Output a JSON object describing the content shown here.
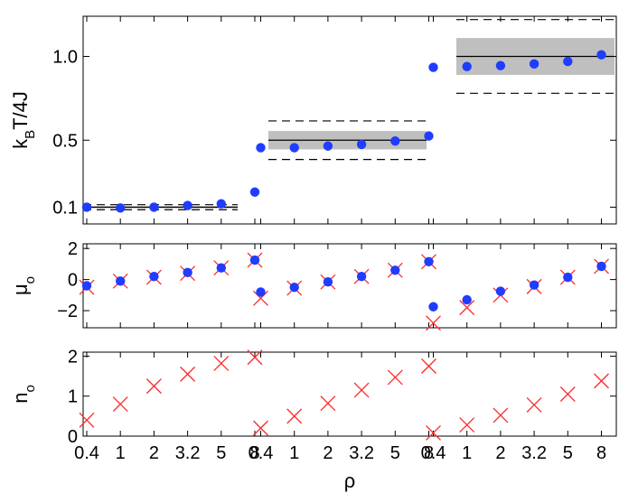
{
  "chart_data": {
    "type": "scatter",
    "x_tick_labels": [
      "0.4",
      "1",
      "2",
      "3.2",
      "5",
      "8"
    ],
    "xlabel": "ρ",
    "colors": {
      "fit": "#1f3cff",
      "true": "#ff2a2a",
      "band": "#bfbfbf",
      "line": "#000000"
    },
    "panels": [
      {
        "id": "temperature",
        "ylabel_main": "k",
        "ylabel_sub": "B",
        "ylabel_rest": "T/4J",
        "yticks": [
          "0.1",
          "0.5",
          "1.0"
        ],
        "ytick_values": [
          0.1,
          0.5,
          1.0
        ],
        "ylim": [
          0.0,
          1.24
        ],
        "groups": [
          {
            "true_value": 0.1,
            "band": [
              0.095,
              0.105
            ],
            "dashed": [
              0.085,
              0.115
            ],
            "fit_values": [
              0.1,
              0.095,
              0.1,
              0.11,
              0.12,
              0.19
            ]
          },
          {
            "true_value": 0.5,
            "band": [
              0.445,
              0.555
            ],
            "dashed": [
              0.385,
              0.615
            ],
            "fit_values": [
              0.455,
              0.455,
              0.465,
              0.475,
              0.495,
              0.525
            ]
          },
          {
            "true_value": 1.0,
            "band": [
              0.89,
              1.11
            ],
            "dashed": [
              0.78,
              1.22
            ],
            "fit_values": [
              0.935,
              0.94,
              0.945,
              0.955,
              0.97,
              1.01
            ]
          }
        ]
      },
      {
        "id": "mu",
        "ylabel_main": "μ",
        "ylabel_sub": "o",
        "yticks": [
          "2",
          "0",
          "−2"
        ],
        "ytick_values": [
          2,
          0,
          -2
        ],
        "ylim": [
          -3.1,
          2.3
        ],
        "groups": [
          {
            "fit_values": [
              -0.4,
              -0.1,
              0.2,
              0.45,
              0.75,
              1.25
            ],
            "true_values": [
              -0.5,
              -0.1,
              0.15,
              0.4,
              0.75,
              1.25
            ]
          },
          {
            "fit_values": [
              -0.8,
              -0.5,
              -0.15,
              0.2,
              0.6,
              1.15
            ],
            "true_values": [
              -1.2,
              -0.55,
              -0.15,
              0.2,
              0.6,
              1.15
            ]
          },
          {
            "fit_values": [
              -1.75,
              -1.3,
              -0.75,
              -0.35,
              0.15,
              0.85
            ],
            "true_values": [
              -2.8,
              -1.8,
              -1.0,
              -0.45,
              0.15,
              0.85
            ]
          }
        ]
      },
      {
        "id": "n",
        "ylabel_main": "n",
        "ylabel_sub": "o",
        "yticks": [
          "2",
          "1",
          "0"
        ],
        "ytick_values": [
          2,
          1,
          0
        ],
        "ylim": [
          0,
          2.1
        ],
        "groups": [
          {
            "true_values": [
              0.4,
              0.8,
              1.25,
              1.55,
              1.82,
              1.97
            ]
          },
          {
            "true_values": [
              0.2,
              0.5,
              0.82,
              1.15,
              1.47,
              1.75
            ]
          },
          {
            "true_values": [
              0.08,
              0.28,
              0.52,
              0.78,
              1.05,
              1.38
            ]
          }
        ]
      }
    ]
  }
}
